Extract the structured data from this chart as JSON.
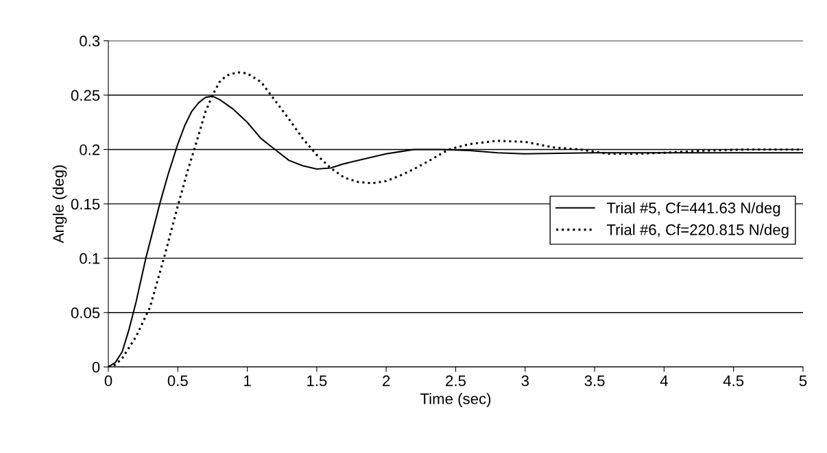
{
  "chart_data": {
    "type": "line",
    "xlabel": "Time (sec)",
    "ylabel": "Angle (deg)",
    "xlim": [
      0,
      5
    ],
    "ylim": [
      0,
      0.3
    ],
    "xticks": [
      0,
      0.5,
      1,
      1.5,
      2,
      2.5,
      3,
      3.5,
      4,
      4.5,
      5
    ],
    "yticks": [
      0,
      0.05,
      0.1,
      0.15,
      0.2,
      0.25,
      0.3
    ],
    "grid": "y",
    "legend": "right",
    "marker": "none",
    "series": [
      {
        "name": "Trial #5, Cf=441.63 N/deg",
        "color": "#000000",
        "line_style": "solid",
        "x": [
          0,
          0.05,
          0.1,
          0.15,
          0.2,
          0.27,
          0.32,
          0.37,
          0.43,
          0.5,
          0.55,
          0.6,
          0.65,
          0.7,
          0.75,
          0.8,
          0.9,
          1.0,
          1.1,
          1.2,
          1.3,
          1.4,
          1.5,
          1.6,
          1.7,
          1.8,
          1.9,
          2.0,
          2.1,
          2.2,
          2.4,
          2.6,
          2.8,
          3.0,
          3.5,
          4.0,
          4.5,
          5.0
        ],
        "values": [
          0,
          0.004,
          0.014,
          0.035,
          0.06,
          0.1,
          0.125,
          0.15,
          0.177,
          0.205,
          0.222,
          0.235,
          0.243,
          0.248,
          0.249,
          0.246,
          0.237,
          0.225,
          0.21,
          0.2,
          0.19,
          0.185,
          0.182,
          0.183,
          0.187,
          0.19,
          0.193,
          0.196,
          0.198,
          0.2,
          0.2,
          0.199,
          0.197,
          0.196,
          0.197,
          0.197,
          0.197,
          0.197
        ]
      },
      {
        "name": "Trial #6, Cf=220.815 N/deg",
        "color": "#000000",
        "line_style": "dotted",
        "x": [
          0,
          0.05,
          0.1,
          0.2,
          0.3,
          0.4,
          0.5,
          0.57,
          0.63,
          0.7,
          0.75,
          0.8,
          0.85,
          0.93,
          1.0,
          1.1,
          1.2,
          1.3,
          1.4,
          1.5,
          1.6,
          1.7,
          1.8,
          1.9,
          2.0,
          2.1,
          2.2,
          2.3,
          2.45,
          2.6,
          2.8,
          3.0,
          3.2,
          3.4,
          3.6,
          3.8,
          4.0,
          4.3,
          4.6,
          5.0
        ],
        "values": [
          0,
          0.002,
          0.008,
          0.028,
          0.055,
          0.1,
          0.148,
          0.18,
          0.205,
          0.235,
          0.25,
          0.262,
          0.268,
          0.271,
          0.27,
          0.262,
          0.245,
          0.228,
          0.21,
          0.195,
          0.183,
          0.174,
          0.17,
          0.169,
          0.171,
          0.176,
          0.182,
          0.189,
          0.2,
          0.205,
          0.208,
          0.207,
          0.202,
          0.2,
          0.196,
          0.196,
          0.197,
          0.199,
          0.2,
          0.2
        ]
      }
    ]
  }
}
